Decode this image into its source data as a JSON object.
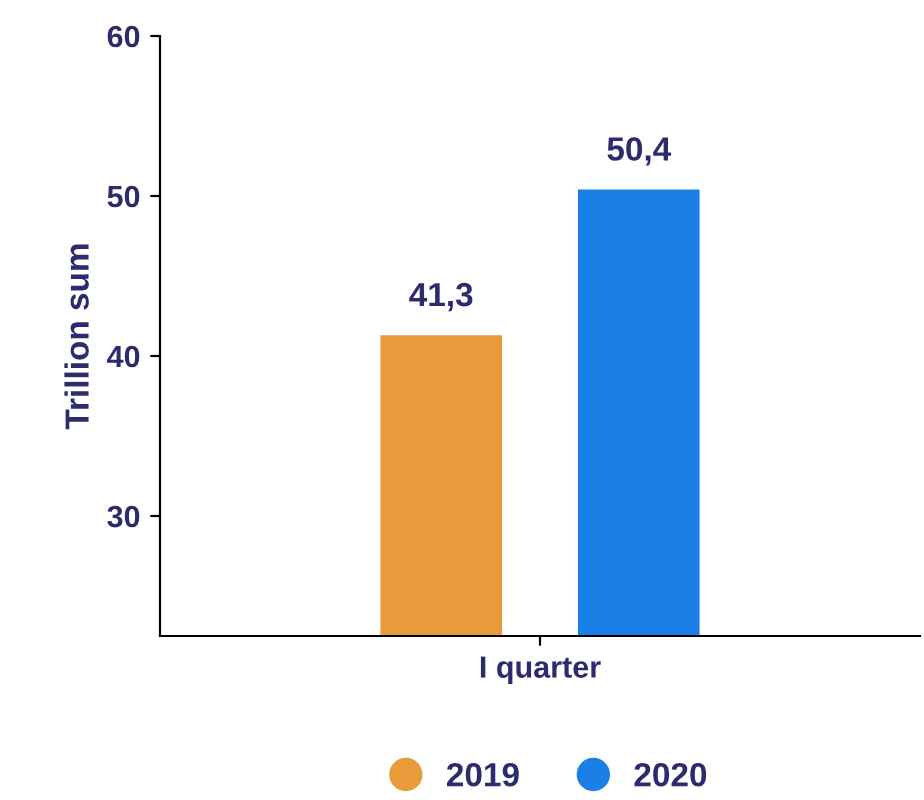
{
  "chart_data": {
    "type": "bar",
    "ylabel": "Trillion sum",
    "categories": [
      "I quarter"
    ],
    "series": [
      {
        "name": "2019",
        "color": "#e89b3a",
        "values": [
          41.3
        ],
        "value_labels": [
          "41,3"
        ]
      },
      {
        "name": "2020",
        "color": "#1a80e6",
        "values": [
          50.4
        ],
        "value_labels": [
          "50,4"
        ]
      }
    ],
    "ylim": [
      22.5,
      60
    ],
    "yticks": [
      30,
      40,
      50,
      60
    ],
    "grid": false,
    "legend": "bottom"
  }
}
